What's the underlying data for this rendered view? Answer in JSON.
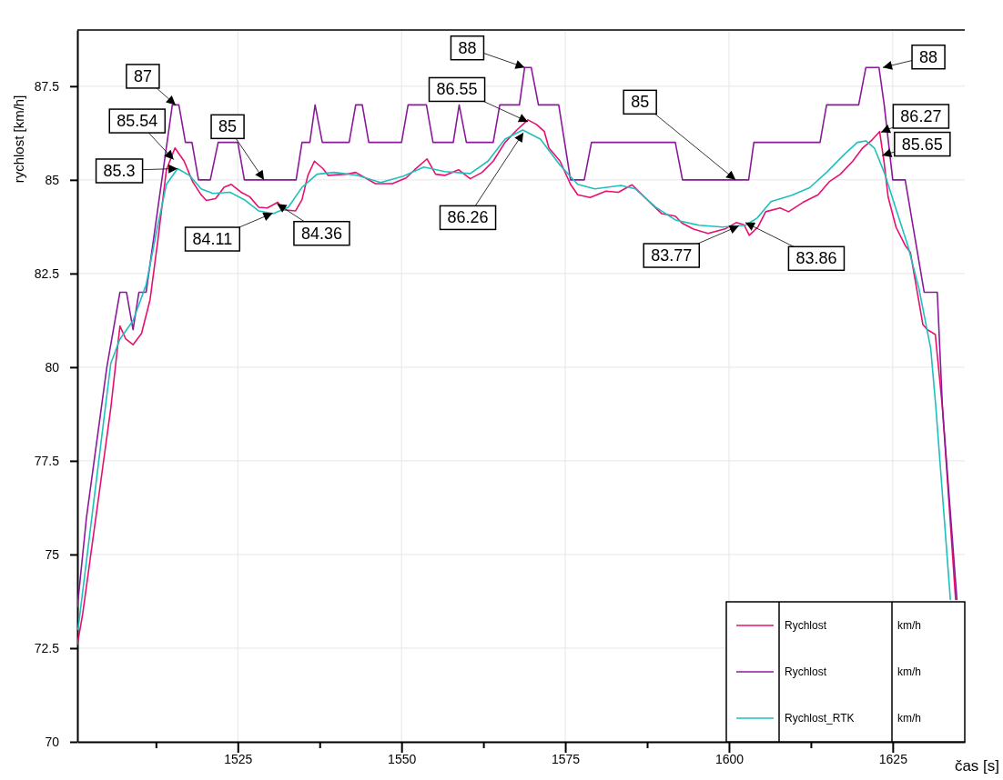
{
  "chart_data": {
    "type": "line",
    "xlabel": "čas [s]",
    "ylabel": "rychlost [km/h]",
    "xlim": [
      1500.5,
      1636
    ],
    "ylim": [
      70,
      89
    ],
    "xticks": [
      {
        "value": 1512.5,
        "label": null
      },
      1525,
      {
        "value": 1537.5,
        "label": null
      },
      1550,
      {
        "value": 1562.5,
        "label": null
      },
      1575,
      {
        "value": 1587.5,
        "label": null
      },
      1600,
      {
        "value": 1612.5,
        "label": null
      },
      1625
    ],
    "yticks": [
      70,
      72.5,
      75,
      77.5,
      80,
      82.5,
      85,
      87.5
    ],
    "grid": true,
    "legend": "bottom right",
    "marker": "none",
    "line_style": "solid",
    "series": [
      {
        "name": "Rychlost",
        "color": "#e8106e",
        "x": [
          1500.5,
          1501.3,
          1505.6,
          1507,
          1507.9,
          1509,
          1510.3,
          1511.6,
          1512.8,
          1514.1,
          1515.4,
          1516.8,
          1518.1,
          1519.4,
          1520.2,
          1521.6,
          1522.9,
          1524,
          1525.5,
          1526.8,
          1528.2,
          1529.5,
          1531.1,
          1532,
          1533.8,
          1534.8,
          1535.7,
          1536.7,
          1538,
          1538.8,
          1541.5,
          1543,
          1546,
          1548.6,
          1550.7,
          1552,
          1553.9,
          1555.2,
          1556.6,
          1558.7,
          1560.5,
          1562.3,
          1564,
          1565.8,
          1567.6,
          1569.3,
          1570.6,
          1571.8,
          1572.5,
          1574.2,
          1575.8,
          1576.9,
          1578.8,
          1581.2,
          1583.1,
          1585.2,
          1587.5,
          1589.7,
          1591.8,
          1592.8,
          1594.5,
          1596.8,
          1599.4,
          1601.1,
          1602.3,
          1603.1,
          1604.4,
          1605.6,
          1607.8,
          1609.1,
          1611.3,
          1613.6,
          1615.3,
          1617,
          1618.9,
          1620.4,
          1621.7,
          1623,
          1623.7,
          1624.3,
          1625.5,
          1626.9,
          1627.7,
          1629.6,
          1630.3,
          1631.5,
          1632.6,
          1634.6
        ],
        "values": [
          72.6,
          73.4,
          78.9,
          81.1,
          80.75,
          80.6,
          80.9,
          81.8,
          83.4,
          85.27,
          85.85,
          85.5,
          84.95,
          84.6,
          84.45,
          84.5,
          84.8,
          84.88,
          84.67,
          84.55,
          84.27,
          84.25,
          84.4,
          84.2,
          84.17,
          84.47,
          85.12,
          85.5,
          85.3,
          85.12,
          85.15,
          85.2,
          84.9,
          84.9,
          85.05,
          85.27,
          85.56,
          85.15,
          85.12,
          85.27,
          85.03,
          85.2,
          85.5,
          86,
          86.33,
          86.6,
          86.48,
          86.29,
          85.85,
          85.5,
          84.88,
          84.6,
          84.53,
          84.7,
          84.67,
          84.87,
          84.47,
          84.1,
          84.03,
          83.85,
          83.69,
          83.57,
          83.69,
          83.86,
          83.8,
          83.52,
          83.74,
          84.15,
          84.25,
          84.15,
          84.4,
          84.6,
          84.95,
          85.15,
          85.5,
          85.85,
          86.04,
          86.29,
          85.44,
          84.54,
          83.74,
          83.25,
          83.06,
          81.14,
          81,
          80.87,
          78.9,
          73.8
        ]
      },
      {
        "name": "Rychlost",
        "color": "#8b1a9b",
        "x": [
          1500.5,
          1501.9,
          1505,
          1507,
          1508,
          1509,
          1509.9,
          1511,
          1515,
          1516,
          1517,
          1518,
          1519,
          1520.8,
          1522,
          1525,
          1526,
          1533.9,
          1534.8,
          1536,
          1536.8,
          1537.9,
          1542,
          1543,
          1544,
          1545,
          1550,
          1551,
          1553.8,
          1554.8,
          1557.9,
          1558.8,
          1559.9,
          1564,
          1565,
          1568,
          1568.8,
          1569.8,
          1570.9,
          1574,
          1575.8,
          1577.9,
          1579,
          1591.8,
          1592.9,
          1603,
          1603.8,
          1613.9,
          1614.9,
          1619.8,
          1620.9,
          1622.9,
          1623.7,
          1625,
          1626.9,
          1629.8,
          1631.8,
          1632.6,
          1634.8
        ],
        "values": [
          73.6,
          76,
          80,
          82,
          82,
          81,
          82,
          82,
          87,
          87,
          86,
          86,
          85,
          85,
          86,
          86,
          85,
          85,
          86,
          86,
          87,
          86,
          86,
          87,
          87,
          86,
          86,
          87,
          87,
          86,
          86,
          87,
          86,
          86,
          87,
          87,
          88,
          88,
          87,
          87,
          85,
          85,
          86,
          86,
          85,
          85,
          86,
          86,
          87,
          87,
          88,
          88,
          87,
          85,
          85,
          82,
          82,
          78.9,
          73.8
        ]
      },
      {
        "name": "Rychlost_RTK",
        "color": "#1fbfbf",
        "x": [
          1500.6,
          1505.6,
          1507,
          1509,
          1511,
          1512.8,
          1514.1,
          1515.8,
          1517.6,
          1519.4,
          1521.2,
          1523.8,
          1526,
          1528.2,
          1530.4,
          1532.7,
          1534.8,
          1537.1,
          1539.7,
          1543.3,
          1546.8,
          1550.3,
          1553.4,
          1556.6,
          1560.5,
          1563.2,
          1565.8,
          1568.5,
          1571.2,
          1574.2,
          1576.9,
          1579.5,
          1583.5,
          1585.7,
          1588.8,
          1591.8,
          1595.4,
          1599,
          1602.5,
          1604.3,
          1606.4,
          1609.6,
          1612.3,
          1614.9,
          1617.6,
          1619.6,
          1620.9,
          1622.2,
          1623.7,
          1625.5,
          1627.3,
          1629,
          1630.8,
          1631.6,
          1633.8
        ],
        "values": [
          73,
          80.1,
          80.75,
          81.24,
          82.2,
          83.8,
          84.88,
          85.3,
          85.12,
          84.76,
          84.64,
          84.67,
          84.47,
          84.17,
          84.1,
          84.27,
          84.8,
          85.15,
          85.2,
          85.12,
          84.93,
          85.1,
          85.34,
          85.22,
          85.17,
          85.5,
          86.09,
          86.33,
          86.09,
          85.39,
          84.88,
          84.76,
          84.85,
          84.76,
          84.27,
          83.93,
          83.79,
          83.74,
          83.79,
          83.98,
          84.42,
          84.59,
          84.79,
          85.2,
          85.68,
          86,
          86.04,
          85.85,
          85.2,
          84.22,
          83.25,
          82.1,
          80.5,
          78.9,
          73.8
        ]
      }
    ],
    "annotations": [
      {
        "text": "87",
        "x": 1515.5,
        "y": 87
      },
      {
        "text": "85.54",
        "x": 1515.2,
        "y": 85.54
      },
      {
        "text": "85.3",
        "x": 1515.8,
        "y": 85.3
      },
      {
        "text": "85",
        "x": 1529,
        "y": 85
      },
      {
        "text": "84.11",
        "x": 1530.3,
        "y": 84.11
      },
      {
        "text": "84.36",
        "x": 1531,
        "y": 84.36
      },
      {
        "text": "88",
        "x": 1568.8,
        "y": 88
      },
      {
        "text": "86.55",
        "x": 1569.3,
        "y": 86.55
      },
      {
        "text": "86.26",
        "x": 1568.6,
        "y": 86.26
      },
      {
        "text": "85",
        "x": 1601,
        "y": 85
      },
      {
        "text": "83.77",
        "x": 1601.5,
        "y": 83.77
      },
      {
        "text": "83.86",
        "x": 1602.5,
        "y": 83.86
      },
      {
        "text": "88",
        "x": 1623.5,
        "y": 88
      },
      {
        "text": "86.27",
        "x": 1623.2,
        "y": 86.27
      },
      {
        "text": "85.65",
        "x": 1623.4,
        "y": 85.65
      },
      "km/h",
      "km/h",
      "km/h"
    ]
  }
}
